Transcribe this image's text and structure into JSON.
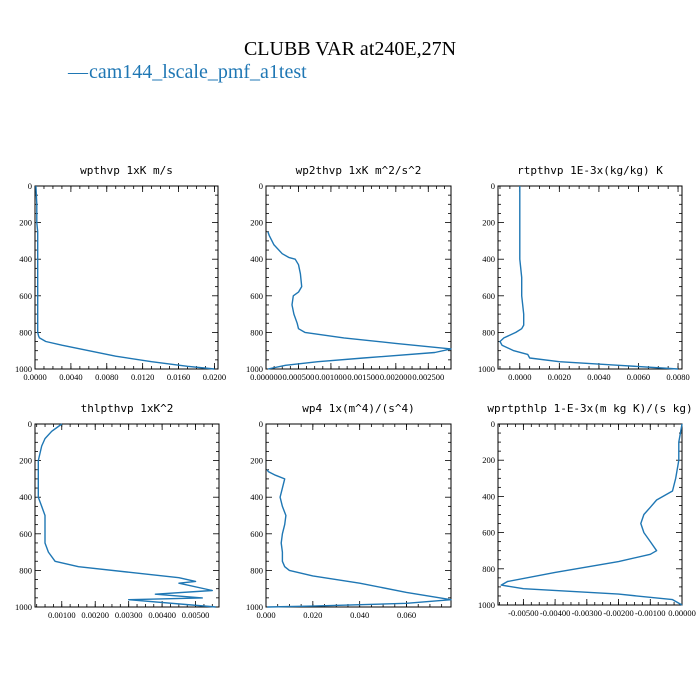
{
  "figure": {
    "title": "CLUBB VAR at240E,27N",
    "legend_line": "—",
    "legend_label": "cam144_lscale_pmf_a1test",
    "series_color": "#1f77b4"
  },
  "chart_data": [
    {
      "type": "line",
      "title": "wpthvp  1xK m/s",
      "xlim": [
        0,
        0.0204
      ],
      "ylim": [
        1000,
        0
      ],
      "xticks": [
        0,
        0.004,
        0.008,
        0.012,
        0.016,
        0.02
      ],
      "xtick_labels": [
        "0.0000",
        "0.0040",
        "0.0080",
        "0.0120",
        "0.0160",
        "0.0200"
      ],
      "yticks": [
        0,
        200,
        400,
        600,
        800,
        1000
      ],
      "ytick_labels": [
        "0",
        "200",
        "400",
        "600",
        "800",
        "1000"
      ],
      "series": [
        {
          "name": "cam144_lscale_pmf_a1test",
          "x": [
            0.0001,
            0.0002,
            0.0002,
            0.0003,
            0.0003,
            0.0003,
            0.0003,
            0.0003,
            0.0003,
            0.0003,
            0.0003,
            0.0004,
            0.0005,
            0.0012,
            0.003,
            0.006,
            0.009,
            0.013,
            0.017,
            0.02
          ],
          "y": [
            0,
            100,
            200,
            250,
            300,
            400,
            500,
            600,
            700,
            780,
            800,
            820,
            830,
            850,
            870,
            900,
            930,
            960,
            985,
            1000
          ]
        }
      ]
    },
    {
      "type": "line",
      "title": "wp2thvp  1xK m^2/s^2",
      "xlim": [
        0,
        0.00285
      ],
      "ylim": [
        1000,
        0
      ],
      "xticks": [
        0,
        0.0005,
        0.001,
        0.0015,
        0.002,
        0.0025
      ],
      "xtick_labels": [
        "0.000000",
        "0.000500",
        "0.001000",
        "0.001500",
        "0.002000",
        "0.002500"
      ],
      "yticks": [
        0,
        200,
        400,
        600,
        800,
        1000
      ],
      "ytick_labels": [
        "0",
        "200",
        "400",
        "600",
        "800",
        "1000"
      ],
      "series": [
        {
          "name": "cam144_lscale_pmf_a1test",
          "x": [
            3e-05,
            5e-05,
            0.00012,
            0.00025,
            0.00035,
            0.00045,
            0.0005,
            0.00053,
            0.00055,
            0.0005,
            0.00042,
            0.0004,
            0.00043,
            0.00048,
            0.0005,
            0.0006,
            0.0012,
            0.002,
            0.00285,
            0.0026,
            0.0015,
            0.0008,
            0.0003,
            3e-05
          ],
          "y": [
            250,
            270,
            320,
            370,
            390,
            400,
            430,
            480,
            550,
            580,
            600,
            650,
            700,
            750,
            780,
            800,
            830,
            860,
            890,
            910,
            940,
            960,
            980,
            1000
          ]
        }
      ]
    },
    {
      "type": "line",
      "title": "rtpthvp  1E-3x(kg/kg) K",
      "xlim": [
        -0.0011,
        0.0082
      ],
      "ylim": [
        1000,
        0
      ],
      "xticks": [
        0,
        0.002,
        0.004,
        0.006,
        0.008
      ],
      "xtick_labels": [
        "0.0000",
        "0.0020",
        "0.0040",
        "0.0060",
        "0.0080"
      ],
      "yticks": [
        0,
        200,
        400,
        600,
        800,
        1000
      ],
      "ytick_labels": [
        "0",
        "200",
        "400",
        "600",
        "800",
        "1000"
      ],
      "series": [
        {
          "name": "cam144_lscale_pmf_a1test",
          "x": [
            0.0,
            0.0,
            0.0,
            0.0001,
            0.0001,
            0.0002,
            0.0002,
            0.0001,
            -0.0002,
            -0.0008,
            -0.001,
            -0.0009,
            -0.0003,
            0.0004,
            0.0005,
            0.002,
            0.005,
            0.008
          ],
          "y": [
            0,
            200,
            400,
            500,
            600,
            700,
            760,
            780,
            800,
            830,
            850,
            870,
            900,
            920,
            940,
            960,
            980,
            1000
          ]
        }
      ]
    },
    {
      "type": "line",
      "title": "thlpthvp  1xK^2",
      "xlim": [
        0.0002,
        0.0057
      ],
      "ylim": [
        1000,
        0
      ],
      "xticks": [
        0.001,
        0.002,
        0.003,
        0.004,
        0.005
      ],
      "xtick_labels": [
        "0.00100",
        "0.00200",
        "0.00300",
        "0.00400",
        "0.00500"
      ],
      "yticks": [
        0,
        200,
        400,
        600,
        800,
        1000
      ],
      "ytick_labels": [
        "0",
        "200",
        "400",
        "600",
        "800",
        "1000"
      ],
      "series": [
        {
          "name": "cam144_lscale_pmf_a1test",
          "x": [
            0.001,
            0.0007,
            0.0005,
            0.0004,
            0.0003,
            0.0003,
            0.0003,
            0.0004,
            0.0005,
            0.0005,
            0.0005,
            0.0006,
            0.0008,
            0.0015,
            0.003,
            0.0045,
            0.005,
            0.0045,
            0.0055,
            0.0038,
            0.0052,
            0.003,
            0.0056
          ],
          "y": [
            0,
            40,
            80,
            120,
            200,
            300,
            400,
            450,
            500,
            550,
            650,
            700,
            750,
            780,
            810,
            840,
            860,
            870,
            910,
            930,
            950,
            960,
            1000
          ]
        }
      ]
    },
    {
      "type": "line",
      "title": "wp4  1x(m^4)/(s^4)",
      "xlim": [
        0,
        0.079
      ],
      "ylim": [
        1000,
        0
      ],
      "xticks": [
        0,
        0.02,
        0.04,
        0.06
      ],
      "xtick_labels": [
        "0.000",
        "0.020",
        "0.040",
        "0.060"
      ],
      "yticks": [
        0,
        200,
        400,
        600,
        800,
        1000
      ],
      "ytick_labels": [
        "0",
        "200",
        "400",
        "600",
        "800",
        "1000"
      ],
      "series": [
        {
          "name": "cam144_lscale_pmf_a1test",
          "x": [
            0.0005,
            0.001,
            0.004,
            0.008,
            0.007,
            0.006,
            0.007,
            0.0085,
            0.008,
            0.007,
            0.0065,
            0.007,
            0.007,
            0.008,
            0.01,
            0.02,
            0.04,
            0.06,
            0.079,
            0.06,
            0.02,
            0.0005
          ],
          "y": [
            250,
            260,
            280,
            300,
            350,
            400,
            450,
            500,
            550,
            600,
            650,
            700,
            750,
            780,
            800,
            830,
            870,
            920,
            960,
            980,
            995,
            1000
          ]
        }
      ]
    },
    {
      "type": "line",
      "title": "wprtpthlp  1-E-3x(m kg K)/(s kg)",
      "xlim": [
        -0.0058,
        0.0
      ],
      "ylim": [
        1000,
        0
      ],
      "xticks": [
        -0.005,
        -0.004,
        -0.003,
        -0.002,
        -0.001,
        0.0
      ],
      "xtick_labels": [
        "-0.00500",
        "-0.00400",
        "-0.00300",
        "-0.00200",
        "-0.00100",
        "0.00000"
      ],
      "yticks": [
        0,
        200,
        400,
        600,
        800,
        1000
      ],
      "ytick_labels": [
        "0",
        "200",
        "400",
        "600",
        "800",
        "1000"
      ],
      "series": [
        {
          "name": "cam144_lscale_pmf_a1test",
          "x": [
            0.0,
            -0.0001,
            -0.0001,
            -0.0002,
            -0.0003,
            -0.0008,
            -0.001,
            -0.0012,
            -0.0013,
            -0.0012,
            -0.001,
            -0.0008,
            -0.001,
            -0.002,
            -0.004,
            -0.0055,
            -0.0057,
            -0.005,
            -0.002,
            -0.0003,
            0.0
          ],
          "y": [
            0,
            100,
            200,
            300,
            370,
            420,
            460,
            500,
            550,
            600,
            650,
            700,
            720,
            760,
            820,
            870,
            890,
            910,
            940,
            970,
            1000
          ]
        }
      ]
    }
  ]
}
